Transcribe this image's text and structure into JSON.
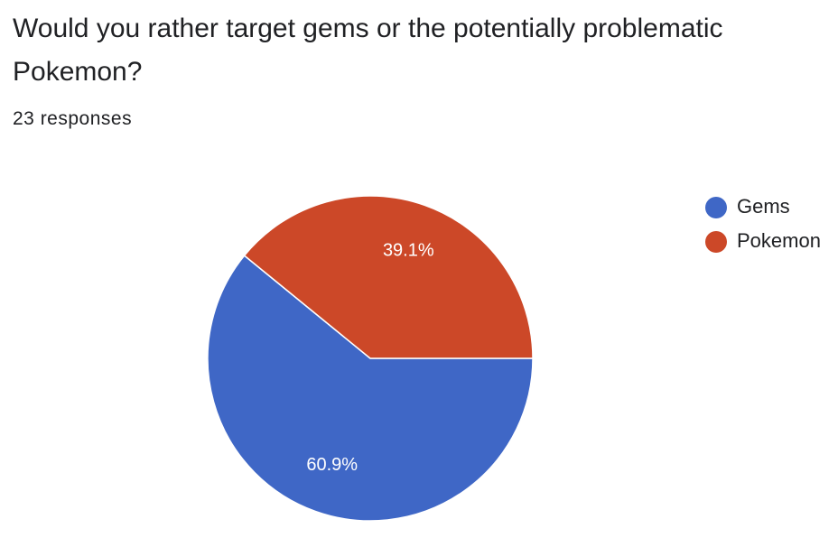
{
  "chart_data": {
    "type": "pie",
    "title": "Would you rather target gems or the potentially problematic Pokemon?",
    "subtitle": "23 responses",
    "categories": [
      "Gems",
      "Pokemon"
    ],
    "values": [
      60.9,
      39.1
    ],
    "value_labels": [
      "60.9%",
      "39.1%"
    ],
    "colors": [
      "#3f67c6",
      "#cc4828"
    ],
    "legend": "right"
  }
}
